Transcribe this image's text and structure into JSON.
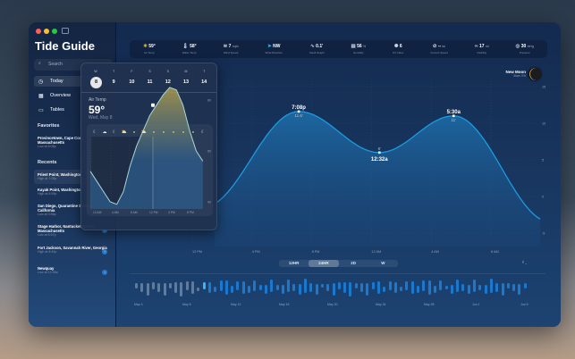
{
  "app": {
    "title": "Tide Guide"
  },
  "sidebar": {
    "search_placeholder": "Search",
    "nav": [
      {
        "label": "Today",
        "icon": "clock-icon"
      },
      {
        "label": "Overview",
        "icon": "grid-icon"
      },
      {
        "label": "Tables",
        "icon": "table-icon"
      }
    ],
    "favorites_title": "Favorites",
    "favorites": [
      {
        "name": "Provincetown, Cape Cod, Massachusetts",
        "sub": "Low at 6:08p"
      }
    ],
    "recents_title": "Recents",
    "recents": [
      {
        "name": "Priest Point, Washington",
        "sub": "High at 7:08p",
        "badge": ""
      },
      {
        "name": "Kayak Point, Washington",
        "sub": "High at 6:59p",
        "badge": ""
      },
      {
        "name": "San Diego, Quarantine Station, California",
        "sub": "Low at 3:56p",
        "badge": ""
      },
      {
        "name": "Stage Harbor, Nantucket Sound, Massachusetts",
        "sub": "Low at 6:57p",
        "badge": "↓"
      },
      {
        "name": "Fort Jackson, Savannah River, Georgia",
        "sub": "High at 8:49p",
        "badge": "↑"
      },
      {
        "name": "Newquay",
        "sub": "Low at 12:38a",
        "badge": "↓"
      }
    ]
  },
  "metrics": [
    {
      "icon": "sun-icon",
      "value": "59°",
      "unit": "",
      "label": "Air Temp"
    },
    {
      "icon": "thermometer-icon",
      "value": "58°",
      "unit": "",
      "label": "Water Temp"
    },
    {
      "icon": "wind-icon",
      "value": "7",
      "unit": "mph",
      "label": "Wind Speed"
    },
    {
      "icon": "direction-icon",
      "value": "NW",
      "unit": "",
      "label": "Wind Direction"
    },
    {
      "icon": "wave-icon",
      "value": "0.1'",
      "unit": "",
      "label": "Swell Height"
    },
    {
      "icon": "humidity-icon",
      "value": "56",
      "unit": "%",
      "label": "Humidity"
    },
    {
      "icon": "uv-icon",
      "value": "6",
      "unit": "",
      "label": "UV Index"
    },
    {
      "icon": "current-icon",
      "value": "--",
      "unit": "kn",
      "label": "Current Speed"
    },
    {
      "icon": "binoculars-icon",
      "value": "17",
      "unit": "mi",
      "label": "Visibility"
    },
    {
      "icon": "gauge-icon",
      "value": "30",
      "unit": "inHg",
      "label": "Pressure"
    }
  ],
  "popover": {
    "days": [
      {
        "d": "W",
        "n": "8"
      },
      {
        "d": "T",
        "n": "9"
      },
      {
        "d": "F",
        "n": "10"
      },
      {
        "d": "S",
        "n": "11"
      },
      {
        "d": "S",
        "n": "12"
      },
      {
        "d": "M",
        "n": "13"
      },
      {
        "d": "T",
        "n": "14"
      }
    ],
    "label": "Air Temp",
    "value": "59°",
    "date": "Wed, May 8",
    "weather": [
      "moon",
      "cloud",
      "moon",
      "cloud-sun",
      "sun",
      "cloud-sun",
      "sun",
      "sun",
      "sun",
      "sun",
      "sun",
      "moon"
    ],
    "y_ticks": [
      "80",
      "70",
      "60",
      "50",
      "40"
    ],
    "x_ticks": [
      "12 AM",
      "4 AM",
      "8 AM",
      "12 PM",
      "4 PM",
      "8 PM"
    ],
    "temps": [
      46,
      44,
      42,
      40,
      39.5,
      42,
      47,
      51,
      54,
      57,
      59,
      61,
      62.5,
      62,
      59,
      54,
      50,
      48
    ]
  },
  "moon": {
    "title": "New Moon",
    "sub": "Illum: 0%"
  },
  "tide": {
    "y_ticks": [
      "15",
      "10",
      "5",
      "0",
      "-5"
    ],
    "x_ticks": [
      "12 PM",
      "4 PM",
      "8 PM",
      "12 AM",
      "4 AM",
      "8 AM"
    ],
    "extremes": [
      {
        "h": 12.7,
        "v": -1.5
      },
      {
        "h": 19.13,
        "v": 11.6,
        "time": "7:08p",
        "label": "11.6'"
      },
      {
        "h": 24.53,
        "v": 6,
        "time": "12:32a",
        "label": "6'"
      },
      {
        "h": 29.5,
        "v": 11,
        "time": "5:30a",
        "label": "11'"
      },
      {
        "h": 36,
        "v": -3.5
      }
    ]
  },
  "range": {
    "options": [
      "12HR",
      "24HR",
      "2D",
      "W"
    ],
    "selected": "24HR"
  },
  "timeline": {
    "labels": [
      "May 4",
      "May 8",
      "May 12",
      "May 16",
      "May 20",
      "May 24",
      "May 28",
      "Jun 1",
      "Jun 5"
    ]
  },
  "colors": {
    "accent": "#1a9be0"
  }
}
